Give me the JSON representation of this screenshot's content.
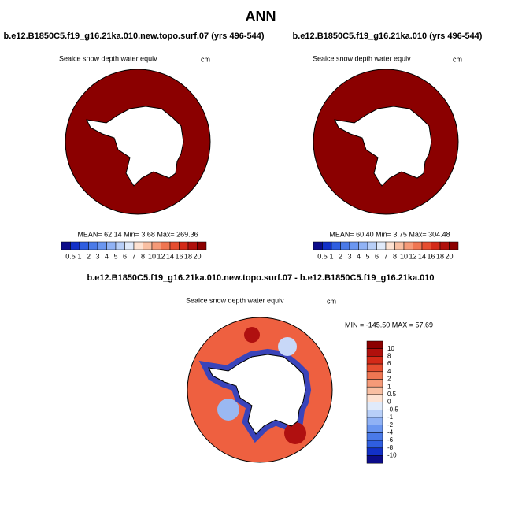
{
  "title": "ANN",
  "panels": [
    {
      "title": "b.e12.B1850C5.f19_g16.21ka.010.new.topo.surf.07 (yrs 496-544)",
      "variable": "Seaice snow depth water equiv",
      "units": "cm",
      "stats": "MEAN=  62.14  Min=    3.68  Max= 269.36",
      "map_color": "#8b0000",
      "colorbar": {
        "labels": [
          "0.5",
          "1",
          "2",
          "3",
          "4",
          "5",
          "6",
          "7",
          "8",
          "10",
          "12",
          "14",
          "16",
          "18",
          "20"
        ],
        "colors": [
          "#0c0c8a",
          "#1230c8",
          "#2f5ee0",
          "#4a7ae8",
          "#6a96f0",
          "#90b2f5",
          "#b8cff8",
          "#e0eafa",
          "#fde2d2",
          "#f9bfa2",
          "#f59a78",
          "#ef7652",
          "#e64e30",
          "#d42a18",
          "#b0100c",
          "#8c0000"
        ]
      }
    },
    {
      "title": "b.e12.B1850C5.f19_g16.21ka.010 (yrs 496-544)",
      "variable": "Seaice snow depth water equiv",
      "units": "cm",
      "stats": "MEAN=  60.40  Min=    3.75  Max= 304.48",
      "map_color": "#8b0000",
      "colorbar": {
        "labels": [
          "0.5",
          "1",
          "2",
          "3",
          "4",
          "5",
          "6",
          "7",
          "8",
          "10",
          "12",
          "14",
          "16",
          "18",
          "20"
        ],
        "colors": [
          "#0c0c8a",
          "#1230c8",
          "#2f5ee0",
          "#4a7ae8",
          "#6a96f0",
          "#90b2f5",
          "#b8cff8",
          "#e0eafa",
          "#fde2d2",
          "#f9bfa2",
          "#f59a78",
          "#ef7652",
          "#e64e30",
          "#d42a18",
          "#b0100c",
          "#8c0000"
        ]
      }
    }
  ],
  "difference": {
    "title": "b.e12.B1850C5.f19_g16.21ka.010.new.topo.surf.07 - b.e12.B1850C5.f19_g16.21ka.010",
    "variable": "Seaice snow depth water equiv",
    "units": "cm",
    "stats": "MIN = -145.50 MAX =  57.69",
    "map_color": "#ee6040",
    "colorbar": {
      "labels": [
        "10",
        "8",
        "6",
        "4",
        "2",
        "1",
        "0.5",
        "0",
        "-0.5",
        "-1",
        "-2",
        "-4",
        "-6",
        "-8",
        "-10"
      ],
      "colors": [
        "#8c0000",
        "#b0100c",
        "#d42a18",
        "#e64e30",
        "#ef7652",
        "#f59a78",
        "#f9bfa2",
        "#fde2d2",
        "#e0eafa",
        "#b8cff8",
        "#90b2f5",
        "#6a96f0",
        "#4a7ae8",
        "#2f5ee0",
        "#1230c8",
        "#0c0c8a"
      ]
    }
  }
}
